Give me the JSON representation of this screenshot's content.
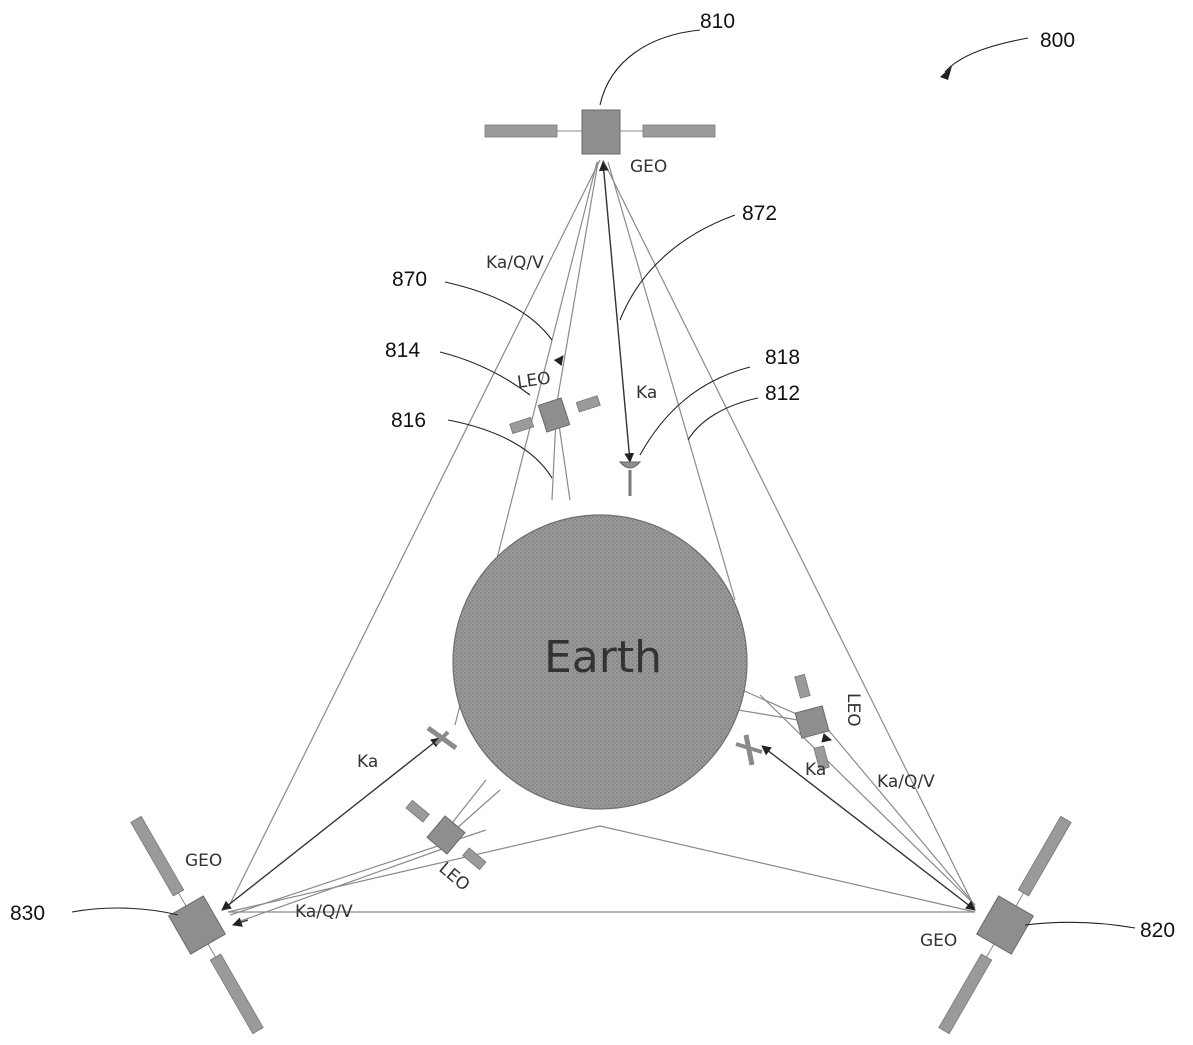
{
  "figure_ref": "800",
  "earth": {
    "label": "Earth"
  },
  "satellites": {
    "geo_top": {
      "ref": "810",
      "type": "GEO"
    },
    "geo_right": {
      "ref": "820",
      "type": "GEO"
    },
    "geo_left": {
      "ref": "830",
      "type": "GEO"
    },
    "leo_top": {
      "type": "LEO"
    },
    "leo_right": {
      "type": "LEO"
    },
    "leo_left": {
      "type": "LEO"
    }
  },
  "refs": {
    "r812": "812",
    "r814": "814",
    "r816": "816",
    "r818": "818",
    "r870": "870",
    "r872": "872"
  },
  "link_labels": {
    "kaqv_top": "Ka/Q/V",
    "ka_top": "Ka",
    "kaqv_right": "Ka/Q/V",
    "ka_right": "Ka",
    "ka_left": "Ka",
    "kaqv_left": "Ka/Q/V"
  },
  "colors": {
    "satellite": "#8e8e8e",
    "earth": "#8c8c8c",
    "links": "#8a8a8a"
  }
}
